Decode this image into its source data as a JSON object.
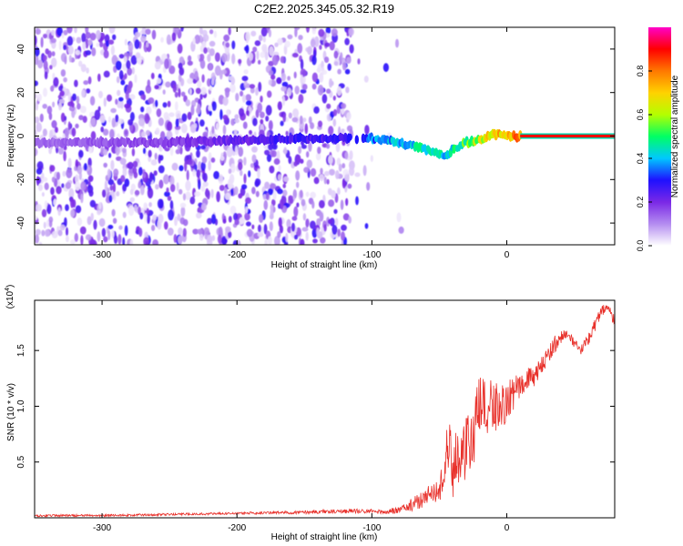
{
  "title": "C2E2.2025.345.05.32.R19",
  "chart_data": [
    {
      "type": "heatmap",
      "name": "spectrogram",
      "xlabel": "Height of straight line (km)",
      "ylabel": "Frequency (Hz)",
      "xlim": [
        -350,
        80
      ],
      "ylim": [
        -50,
        50
      ],
      "xticks": [
        -300,
        -200,
        -100,
        0
      ],
      "xtick_labels": [
        "-300",
        "-200",
        "-100",
        "0"
      ],
      "yticks": [
        -40,
        -20,
        0,
        20,
        40
      ],
      "ytick_labels": [
        "-40",
        "-20",
        "0",
        "20",
        "40"
      ],
      "signal_track": {
        "description_height_km": [
          -350,
          -250,
          -200,
          -160,
          -115,
          -100,
          -80,
          -65,
          -55,
          -45,
          -40,
          -30,
          -20,
          -10,
          0,
          10,
          20,
          40,
          60,
          80
        ],
        "frequency_hz": [
          -3,
          -3,
          -2,
          -1,
          -1,
          -1,
          -3,
          -5,
          -7,
          -9,
          -6,
          -3,
          -2,
          1,
          0,
          0,
          0,
          0,
          0,
          0
        ],
        "amplitude": [
          0.15,
          0.2,
          0.25,
          0.3,
          0.3,
          0.4,
          0.45,
          0.5,
          0.55,
          0.45,
          0.5,
          0.6,
          0.7,
          0.8,
          0.85,
          0.9,
          0.95,
          0.95,
          0.95,
          0.95
        ]
      },
      "colorbar": {
        "label": "Normalized spectral amplitude",
        "range": [
          0,
          1
        ],
        "ticks": [
          0.0,
          0.2,
          0.4,
          0.6,
          0.8
        ],
        "tick_labels": [
          "0.0",
          "0.2",
          "0.4",
          "0.6",
          "0.8"
        ],
        "colors": [
          "#ffffff",
          "#b48cf0",
          "#7a28e6",
          "#1e10ff",
          "#00c8ff",
          "#00ff64",
          "#b4ff00",
          "#ffd200",
          "#ff7800",
          "#ff0000",
          "#ff00c8"
        ]
      }
    },
    {
      "type": "line",
      "name": "snr",
      "xlabel": "Height of straight line (km)",
      "ylabel": "SNR (10 * v/v)",
      "multiplier_label": "(x10",
      "multiplier_exp": "4",
      "xlim": [
        -350,
        80
      ],
      "ylim": [
        0,
        1.95
      ],
      "xticks": [
        -300,
        -200,
        -100,
        0
      ],
      "xtick_labels": [
        "-300",
        "-200",
        "-100",
        "0"
      ],
      "yticks": [
        0.5,
        1.0,
        1.5
      ],
      "ytick_labels": [
        "0.5",
        "1.0",
        "1.5"
      ],
      "color": "#e8302a",
      "series": [
        {
          "name": "SNR",
          "x": [
            -350,
            -300,
            -250,
            -200,
            -150,
            -120,
            -100,
            -90,
            -80,
            -70,
            -60,
            -55,
            -50,
            -45,
            -42,
            -40,
            -38,
            -35,
            -30,
            -25,
            -20,
            -15,
            -10,
            -5,
            0,
            5,
            10,
            15,
            20,
            25,
            30,
            35,
            40,
            45,
            50,
            55,
            60,
            65,
            70,
            75,
            80
          ],
          "values": [
            0.02,
            0.02,
            0.03,
            0.04,
            0.05,
            0.06,
            0.06,
            0.05,
            0.07,
            0.12,
            0.18,
            0.25,
            0.22,
            0.55,
            0.78,
            0.3,
            0.6,
            0.5,
            0.65,
            0.72,
            1.0,
            0.95,
            1.05,
            0.95,
            1.05,
            1.1,
            1.2,
            1.25,
            1.25,
            1.35,
            1.45,
            1.55,
            1.62,
            1.65,
            1.55,
            1.5,
            1.6,
            1.72,
            1.85,
            1.9,
            1.75
          ],
          "noise": [
            0.01,
            0.01,
            0.01,
            0.01,
            0.015,
            0.02,
            0.02,
            0.02,
            0.03,
            0.06,
            0.08,
            0.1,
            0.1,
            0.2,
            0.25,
            0.15,
            0.25,
            0.25,
            0.3,
            0.3,
            0.3,
            0.25,
            0.25,
            0.22,
            0.2,
            0.15,
            0.12,
            0.1,
            0.1,
            0.08,
            0.08,
            0.08,
            0.06,
            0.06,
            0.05,
            0.05,
            0.06,
            0.06,
            0.05,
            0.05,
            0.05
          ]
        }
      ]
    }
  ]
}
